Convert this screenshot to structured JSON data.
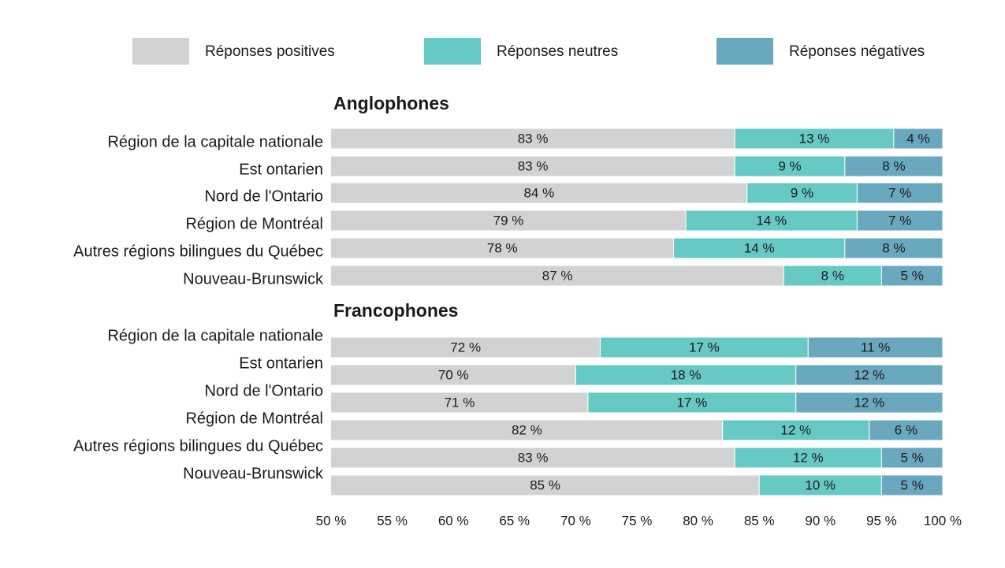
{
  "chart_data": {
    "type": "bar",
    "orientation": "horizontal",
    "stacked": true,
    "legend": "top",
    "xlim": [
      50,
      100
    ],
    "xticks": [
      {
        "value": 50,
        "label": "50 %"
      },
      {
        "value": 55,
        "label": "55 %"
      },
      {
        "value": 60,
        "label": "60 %"
      },
      {
        "value": 65,
        "label": "65 %"
      },
      {
        "value": 70,
        "label": "70 %"
      },
      {
        "value": 75,
        "label": "75 %"
      },
      {
        "value": 80,
        "label": "80 %"
      },
      {
        "value": 85,
        "label": "85 %"
      },
      {
        "value": 90,
        "label": "90 %"
      },
      {
        "value": 95,
        "label": "95 %"
      },
      {
        "value": 100,
        "label": "100 %"
      }
    ],
    "series": [
      {
        "name": "Réponses positives",
        "color": "#d1d2d4"
      },
      {
        "name": "Réponses neutres",
        "color": "#66c9c4"
      },
      {
        "name": "Réponses négatives",
        "color": "#6aa8c0"
      }
    ],
    "groups": [
      {
        "title": "Anglophones",
        "categories": [
          "Région de la capitale nationale",
          "Est ontarien",
          "Nord de l'Ontario",
          "Région de Montréal",
          "Autres régions bilingues du Québec",
          "Nouveau-Brunswick"
        ],
        "values": [
          [
            83,
            83,
            84,
            79,
            78,
            87
          ],
          [
            13,
            9,
            9,
            14,
            14,
            8
          ],
          [
            4,
            8,
            7,
            7,
            8,
            5
          ]
        ],
        "value_labels": [
          [
            "83 %",
            "83 %",
            "84 %",
            "79 %",
            "78 %",
            "87 %"
          ],
          [
            "13 %",
            "9 %",
            "9 %",
            "14 %",
            "14 %",
            "8 %"
          ],
          [
            "4 %",
            "8 %",
            "7 %",
            "7 %",
            "8 %",
            "5 %"
          ]
        ]
      },
      {
        "title": "Francophones",
        "categories": [
          "Région de la capitale nationale",
          "Est ontarien",
          "Nord de l'Ontario",
          "Région de Montréal",
          "Autres régions bilingues du Québec",
          "Nouveau-Brunswick"
        ],
        "values": [
          [
            72,
            70,
            71,
            82,
            83,
            85
          ],
          [
            17,
            18,
            17,
            12,
            12,
            10
          ],
          [
            11,
            12,
            12,
            6,
            5,
            5
          ]
        ],
        "value_labels": [
          [
            "72 %",
            "70 %",
            "71 %",
            "82 %",
            "83 %",
            "85 %"
          ],
          [
            "17 %",
            "18 %",
            "17 %",
            "12 %",
            "12 %",
            "10 %"
          ],
          [
            "11 %",
            "12 %",
            "12 %",
            "6 %",
            "5 %",
            "5 %"
          ]
        ]
      }
    ]
  }
}
